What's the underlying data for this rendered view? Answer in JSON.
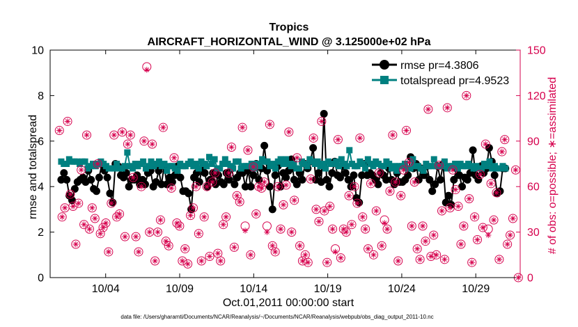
{
  "chart_data": {
    "type": "line",
    "title": "Tropics",
    "subtitle": "AIRCRAFT_HORIZONTAL_WIND @ 3.125000e+02 hPa",
    "xlabel": "Oct.01,2011 00:00:00 start",
    "ylabel": "rmse and totalspread",
    "ylabel_right": "# of obs: o=possible; ∗=assimilated",
    "footer": "data file: /Users/gharamti/Documents/NCAR/Reanalysis/~/Documents/NCAR/Reanalysis/webpub/obs_diag_output_2011-10.nc",
    "xlim": [
      0.25,
      32
    ],
    "ylim": [
      0,
      10
    ],
    "ylim_right": [
      0,
      150
    ],
    "x_ticks": [
      4,
      9,
      14,
      19,
      24,
      29
    ],
    "x_tick_labels": [
      "10/04",
      "10/09",
      "10/14",
      "10/19",
      "10/24",
      "10/29"
    ],
    "y_ticks": [
      0,
      2,
      4,
      6,
      8,
      10
    ],
    "y_tick_labels": [
      "0",
      "2",
      "4",
      "6",
      "8",
      "10"
    ],
    "y_ticks_right": [
      0,
      30,
      60,
      90,
      120,
      150
    ],
    "y_tick_labels_right": [
      "0",
      "30",
      "60",
      "90",
      "120",
      "150"
    ],
    "legend": [
      {
        "name": "rmse pr=4.3806",
        "color": "#000000",
        "marker": "circle"
      },
      {
        "name": "totalspread pr=4.9523",
        "color": "#008080",
        "marker": "square"
      }
    ],
    "colors": {
      "rmse": "#000000",
      "totalspread": "#008080",
      "obs": "#d6004d"
    },
    "series": [
      {
        "name": "rmse",
        "values": [
          4.3,
          4.6,
          4.3,
          3.6,
          3.4,
          3.9,
          4.2,
          4.3,
          4.4,
          4.2,
          4.7,
          4.3,
          3.9,
          3.8,
          4.4,
          5.0,
          4.7,
          4.4,
          3.7,
          3.3,
          5.0,
          4.9,
          4.5,
          4.4,
          4.6,
          4.0,
          4.3,
          4.3,
          4.5,
          4.1,
          4.3,
          4.1,
          4.6,
          4.7,
          4.0,
          4.2,
          4.7,
          4.1,
          4.9,
          4.1,
          4.4,
          4.2,
          4.5,
          4.9,
          4.4,
          3.8,
          3.8,
          3.7,
          3.0,
          4.4,
          4.6,
          4.2,
          4.8,
          4.6,
          4.0,
          4.3,
          4.6,
          4.1,
          4.5,
          4.2,
          4.1,
          4.6,
          4.3,
          4.8,
          4.1,
          4.4,
          4.6,
          4.6,
          4.0,
          4.7,
          4.0,
          4.5,
          5.0,
          4.3,
          4.8,
          5.8,
          4.7,
          4.0,
          3.0,
          4.5,
          4.9,
          4.0,
          4.6,
          4.4,
          4.7,
          5.2,
          4.3,
          4.1,
          4.6,
          4.3,
          5.0,
          4.8,
          5.1,
          5.7,
          4.3,
          4.6,
          4.2,
          7.2,
          4.3,
          4.0,
          4.6,
          5.1,
          4.5,
          4.4,
          4.9,
          4.6,
          4.3,
          4.0,
          4.5,
          3.5,
          3.3,
          4.5,
          5.0,
          4.5,
          4.6,
          4.5,
          4.3,
          4.1,
          4.6,
          4.5,
          4.3,
          4.8,
          4.3,
          4.1,
          4.6,
          4.2,
          4.2,
          4.3,
          4.5,
          5.3,
          4.8,
          5.0,
          4.3,
          4.8,
          4.5,
          4.9,
          4.3,
          3.8,
          4.1,
          4.9,
          4.3,
          5.0,
          3.3,
          3.6,
          3.2,
          4.3,
          4.8,
          4.5,
          4.0,
          4.4,
          4.3,
          4.6,
          5.6,
          4.5,
          4.3,
          4.9,
          4.6,
          4.8,
          5.7,
          5.1,
          4.5,
          3.7,
          3.8,
          4.8,
          4.8
        ]
      },
      {
        "name": "totalspread",
        "values": [
          5.1,
          5.0,
          5.0,
          5.2,
          5.1,
          5.1,
          5.1,
          5.0,
          5.1,
          5.1,
          4.8,
          4.9,
          5.0,
          4.9,
          5.0,
          5.1,
          5.0,
          4.9,
          4.8,
          4.8,
          4.8,
          5.0,
          4.8,
          4.8,
          4.9,
          5.5,
          4.9,
          4.8,
          5.0,
          4.9,
          5.0,
          5.1,
          4.8,
          4.9,
          5.1,
          4.9,
          5.0,
          5.1,
          4.9,
          5.0,
          4.7,
          4.9,
          4.9,
          4.8,
          4.7,
          5.0,
          4.9,
          4.9,
          5.0,
          5.1,
          4.9,
          5.0,
          4.8,
          5.1,
          5.0,
          4.9,
          5.3,
          5.0,
          5.2,
          4.8,
          4.8,
          5.0,
          5.2,
          5.0,
          4.9,
          4.8,
          5.1,
          5.1,
          4.8,
          4.9,
          4.9,
          4.9,
          5.0,
          4.8,
          5.0,
          4.9,
          5.2,
          5.1,
          5.1,
          4.9,
          5.0,
          4.8,
          5.1,
          5.2,
          5.0,
          5.2,
          5.0,
          4.9,
          5.0,
          4.8,
          4.8,
          5.1,
          5.0,
          4.9,
          5.2,
          5.1,
          5.0,
          5.1,
          4.9,
          5.0,
          4.8,
          5.1,
          5.0,
          5.0,
          5.1,
          4.9,
          5.2,
          5.0,
          4.9,
          5.6,
          5.0,
          4.9,
          4.9,
          5.1,
          5.0,
          4.8,
          5.2,
          5.0,
          4.9,
          5.1,
          5.0,
          4.9,
          4.9,
          5.1,
          5.0,
          4.8,
          4.9,
          4.7,
          4.9,
          4.9,
          5.0,
          4.8,
          4.8,
          5.2,
          4.9,
          4.9,
          4.8,
          4.7,
          5.0,
          4.9,
          4.9,
          5.2,
          4.9,
          4.9,
          4.9,
          5.1,
          4.8,
          4.9,
          4.9,
          5.0,
          4.8,
          5.0,
          4.9,
          4.9,
          5.0,
          4.9,
          4.8,
          4.9,
          4.8,
          4.8,
          5.0,
          4.9,
          5.1,
          4.8,
          4.9,
          4.8,
          4.8,
          4.9,
          4.8
        ]
      },
      {
        "name": "obs_possible",
        "values": [
          97,
          40,
          46,
          103,
          55,
          47,
          22,
          49,
          71,
          35,
          94,
          32,
          46,
          39,
          75,
          29,
          33,
          36,
          17,
          49,
          94,
          40,
          42,
          96,
          27,
          88,
          94,
          66,
          27,
          17,
          60,
          90,
          139,
          30,
          88,
          11,
          30,
          38,
          99,
          24,
          21,
          59,
          79,
          36,
          34,
          11,
          19,
          9,
          41,
          46,
          60,
          29,
          11,
          40,
          60,
          14,
          63,
          69,
          16,
          11,
          35,
          40,
          69,
          86,
          20,
          54,
          50,
          99,
          34,
          84,
          15,
          73,
          42,
          60,
          59,
          63,
          34,
          101,
          21,
          17,
          60,
          32,
          48,
          61,
          96,
          30,
          51,
          79,
          21,
          11,
          15,
          10,
          65,
          92,
          45,
          37,
          103,
          44,
          10,
          47,
          32,
          19,
          91,
          13,
          32,
          30,
          54,
          35,
          60,
          49,
          92,
          40,
          32,
          19,
          62,
          15,
          44,
          69,
          21,
          38,
          32,
          57,
          94,
          63,
          11,
          54,
          71,
          97,
          76,
          34,
          63,
          19,
          12,
          34,
          24,
          111,
          14,
          28,
          15,
          74,
          44,
          12,
          112,
          46,
          71,
          58,
          47,
          22,
          34,
          120,
          52,
          10,
          40,
          25,
          68,
          33,
          88,
          32,
          62,
          38,
          56,
          12,
          83,
          91,
          22,
          28,
          39,
          71,
          0
        ]
      },
      {
        "name": "obs_assimilated",
        "values": [
          97,
          40,
          46,
          103,
          55,
          47,
          22,
          49,
          71,
          35,
          94,
          32,
          46,
          39,
          75,
          29,
          33,
          36,
          17,
          49,
          94,
          40,
          42,
          96,
          27,
          88,
          94,
          66,
          27,
          17,
          60,
          90,
          137,
          30,
          88,
          11,
          30,
          38,
          99,
          24,
          21,
          59,
          79,
          36,
          34,
          11,
          19,
          9,
          41,
          46,
          60,
          29,
          11,
          40,
          60,
          14,
          63,
          69,
          16,
          11,
          35,
          40,
          69,
          86,
          20,
          54,
          50,
          99,
          31,
          84,
          15,
          73,
          42,
          60,
          59,
          63,
          30,
          101,
          21,
          17,
          60,
          32,
          48,
          61,
          96,
          30,
          51,
          79,
          21,
          11,
          15,
          10,
          65,
          92,
          45,
          37,
          103,
          44,
          10,
          47,
          32,
          17,
          91,
          13,
          32,
          30,
          54,
          35,
          60,
          49,
          92,
          40,
          32,
          19,
          62,
          15,
          44,
          69,
          21,
          36,
          32,
          57,
          94,
          63,
          11,
          54,
          71,
          97,
          76,
          34,
          63,
          19,
          12,
          34,
          24,
          111,
          14,
          28,
          15,
          74,
          44,
          12,
          112,
          46,
          71,
          58,
          47,
          22,
          34,
          120,
          52,
          10,
          40,
          25,
          68,
          33,
          88,
          28,
          62,
          38,
          56,
          12,
          83,
          91,
          22,
          28,
          39,
          71,
          0
        ]
      }
    ]
  }
}
